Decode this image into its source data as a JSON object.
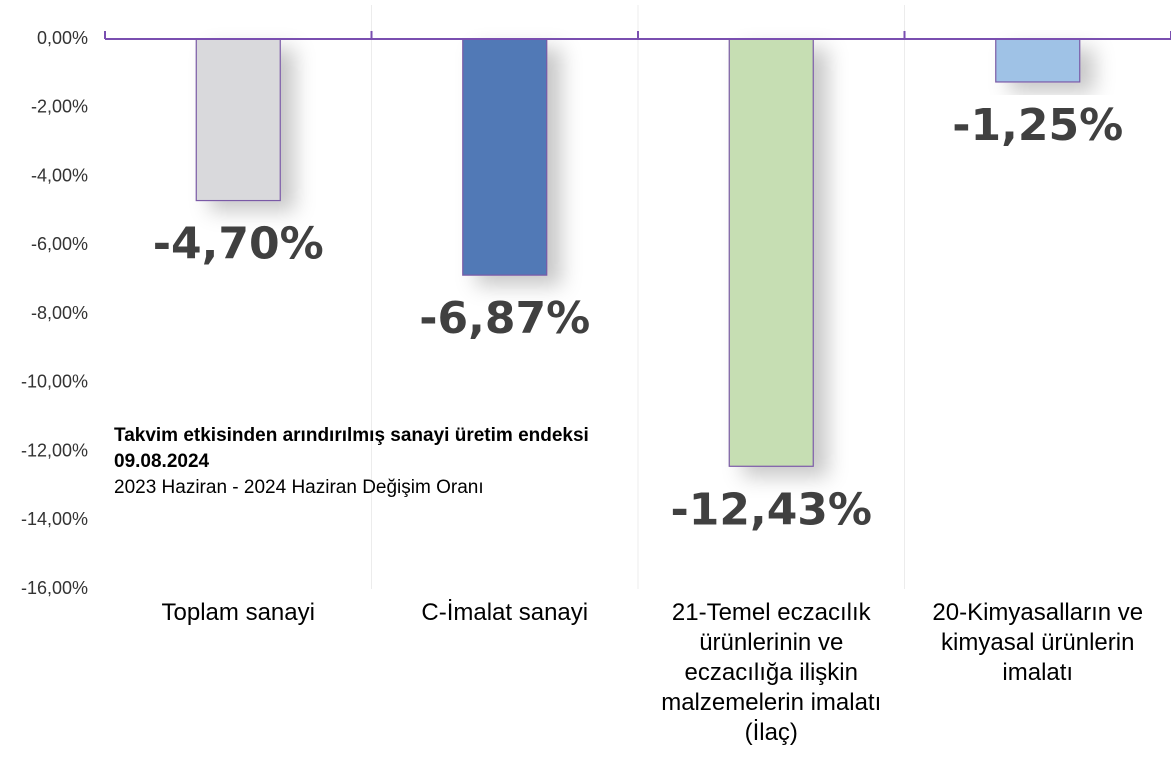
{
  "chart_data": {
    "type": "bar",
    "title": "Takvim etkisinden arındırılmış sanayi üretim endeksi",
    "date": "09.08.2024",
    "subtitle": "2023 Haziran - 2024 Haziran Değişim Oranı",
    "categories": [
      "Toplam sanayi",
      "C-İmalat sanayi",
      "21-Temel eczacılık ürünlerinin ve eczacılığa ilişkin malzemelerin imalatı (İlaç)",
      "20-Kimyasalların ve kimyasal ürünlerin imalatı"
    ],
    "values": [
      -4.7,
      -6.87,
      -12.43,
      -1.25
    ],
    "value_labels": [
      "-4,70%",
      "-6,87%",
      "-12,43%",
      "-1,25%"
    ],
    "colors": [
      "#d9d9dc",
      "#5179b6",
      "#c6deb3",
      "#9fc2e6"
    ],
    "ylim": [
      -16,
      0
    ],
    "yticks": [
      {
        "value": 0,
        "label": "0,00%"
      },
      {
        "value": -2,
        "label": "-2,00%"
      },
      {
        "value": -4,
        "label": "-4,00%"
      },
      {
        "value": -6,
        "label": "-6,00%"
      },
      {
        "value": -8,
        "label": "-8,00%"
      },
      {
        "value": -10,
        "label": "-10,00%"
      },
      {
        "value": -12,
        "label": "-12,00%"
      },
      {
        "value": -14,
        "label": "-14,00%"
      },
      {
        "value": -16,
        "label": "-16,00%"
      }
    ],
    "grid": true
  }
}
